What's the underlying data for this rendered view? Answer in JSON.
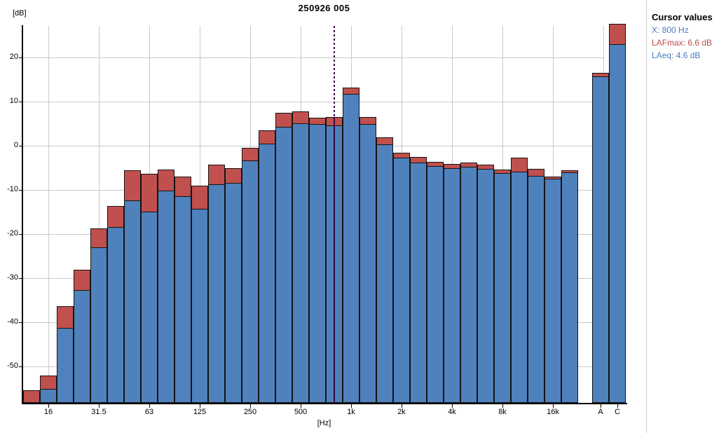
{
  "title": "250926 005",
  "y_axis_label": "[dB]",
  "x_axis_label": "[Hz]",
  "cursor_panel": {
    "heading": "Cursor values",
    "x_line": "X: 800 Hz",
    "lafmax_line": "LAFmax: 6.6 dB",
    "laeq_line": "LAeq: 4.6 dB"
  },
  "colors": {
    "laeq_bar": "#4F81BD",
    "lafmax_bar": "#C0504D",
    "bar_border": "#141414",
    "grid": "#C9C9C9",
    "axis": "#000000",
    "cursor_line": "#38083E",
    "cursor_x_text": "#4A7EBB",
    "cursor_lafmax_text": "#BE4B48",
    "cursor_laeq_text": "#4A7EBB"
  },
  "chart_data": {
    "type": "bar",
    "title": "250926 005",
    "xlabel": "[Hz]",
    "ylabel": "[dB]",
    "ylim": [
      -58.2,
      27.2
    ],
    "grid": true,
    "legend_position": "none",
    "y_tick_values": [
      20,
      10,
      0,
      -10,
      -20,
      -30,
      -40,
      -50
    ],
    "y_tick_labels": [
      "20",
      "10",
      "0",
      "-10",
      "-20",
      "-30",
      "-40",
      "-50"
    ],
    "x_tick_labels": [
      "16",
      "31.5",
      "63",
      "125",
      "250",
      "500",
      "1k",
      "2k",
      "4k",
      "8k",
      "16k",
      "A",
      "C"
    ],
    "x_tick_band_indices": [
      1,
      4,
      7,
      10,
      13,
      16,
      19,
      22,
      25,
      28,
      31,
      33,
      34
    ],
    "categories": [
      "12.5",
      "16",
      "20",
      "25",
      "31.5",
      "40",
      "50",
      "63",
      "80",
      "100",
      "125",
      "160",
      "200",
      "250",
      "315",
      "400",
      "500",
      "630",
      "800",
      "1k",
      "1.25k",
      "1.6k",
      "2k",
      "2.5k",
      "3.15k",
      "4k",
      "5k",
      "6.3k",
      "8k",
      "10k",
      "12.5k",
      "16k",
      "20k",
      "A",
      "C"
    ],
    "series": [
      {
        "name": "LAFmax",
        "color": "#C0504D",
        "values": [
          -55.4,
          -52.0,
          -36.3,
          -28.1,
          -18.7,
          -13.6,
          -5.5,
          -6.3,
          -5.4,
          -7.0,
          -9.0,
          -4.2,
          -5.1,
          -0.4,
          3.5,
          7.5,
          7.8,
          6.4,
          6.6,
          13.3,
          6.5,
          2.0,
          -1.6,
          -2.5,
          -3.6,
          -4.1,
          -3.8,
          -4.3,
          -5.3,
          -2.6,
          -5.2,
          -7.0,
          -5.5,
          16.5,
          27.7
        ]
      },
      {
        "name": "LAeq",
        "color": "#4F81BD",
        "values": [
          -58.2,
          -55.1,
          -41.2,
          -32.6,
          -23.0,
          -18.4,
          -12.3,
          -14.8,
          -10.1,
          -11.3,
          -14.2,
          -8.7,
          -8.4,
          -3.3,
          0.6,
          4.4,
          5.2,
          5.0,
          4.6,
          11.8,
          5.0,
          0.3,
          -2.6,
          -3.7,
          -4.5,
          -5.0,
          -4.7,
          -5.2,
          -6.2,
          -5.8,
          -6.7,
          -7.4,
          -6.0,
          15.8,
          23.0
        ]
      }
    ],
    "cursor": {
      "x_band": "800",
      "x_band_index": 18,
      "lafmax": 6.6,
      "laeq": 4.6
    }
  }
}
